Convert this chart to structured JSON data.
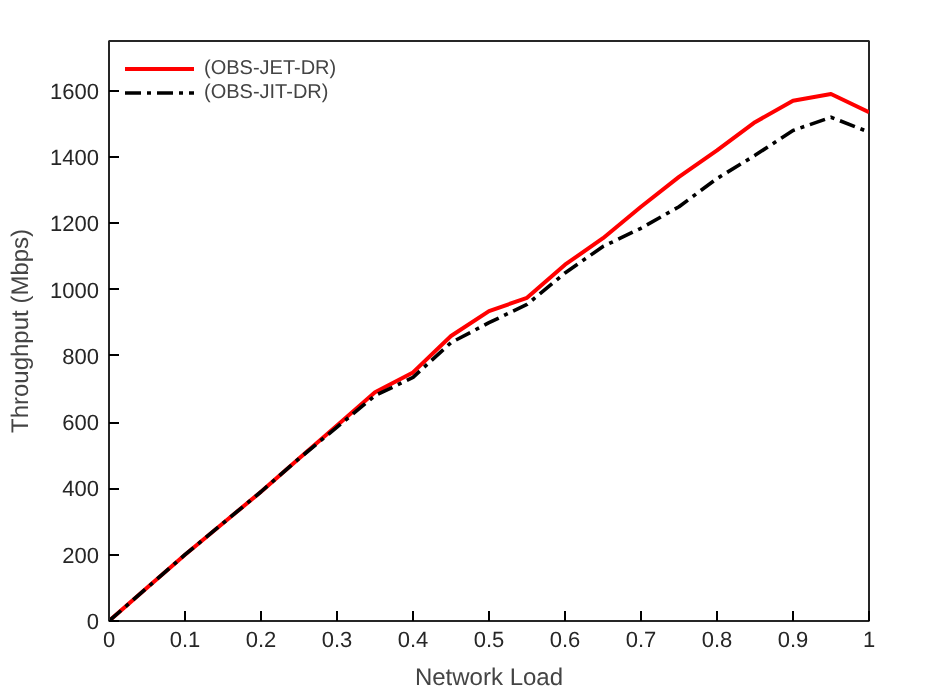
{
  "chart_data": {
    "type": "line",
    "xlabel": "Network Load",
    "ylabel": "Throughput (Mbps)",
    "x": [
      0,
      0.05,
      0.1,
      0.15,
      0.2,
      0.25,
      0.3,
      0.35,
      0.4,
      0.45,
      0.5,
      0.55,
      0.6,
      0.65,
      0.7,
      0.75,
      0.8,
      0.85,
      0.9,
      0.95,
      1
    ],
    "series": [
      {
        "name": "(OBS-JET-DR)",
        "color": "#ff0000",
        "line_style": "solid",
        "values": [
          0,
          100,
          200,
          295,
          390,
          490,
          590,
          690,
          750,
          860,
          935,
          975,
          1075,
          1155,
          1250,
          1340,
          1420,
          1505,
          1570,
          1590,
          1535
        ]
      },
      {
        "name": "(OBS-JIT-DR)",
        "color": "#000000",
        "line_style": "dashdot",
        "values": [
          0,
          100,
          200,
          295,
          390,
          490,
          585,
          680,
          735,
          840,
          900,
          955,
          1050,
          1130,
          1185,
          1250,
          1335,
          1405,
          1480,
          1520,
          1475
        ]
      }
    ],
    "xlim": [
      0,
      1
    ],
    "ylim": [
      0,
      1750
    ],
    "xticks": [
      0,
      0.1,
      0.2,
      0.3,
      0.4,
      0.5,
      0.6,
      0.7,
      0.8,
      0.9,
      1
    ],
    "yticks": [
      0,
      200,
      400,
      600,
      800,
      1000,
      1200,
      1400,
      1600
    ],
    "grid": false,
    "legend": "top left",
    "marker": "none"
  }
}
